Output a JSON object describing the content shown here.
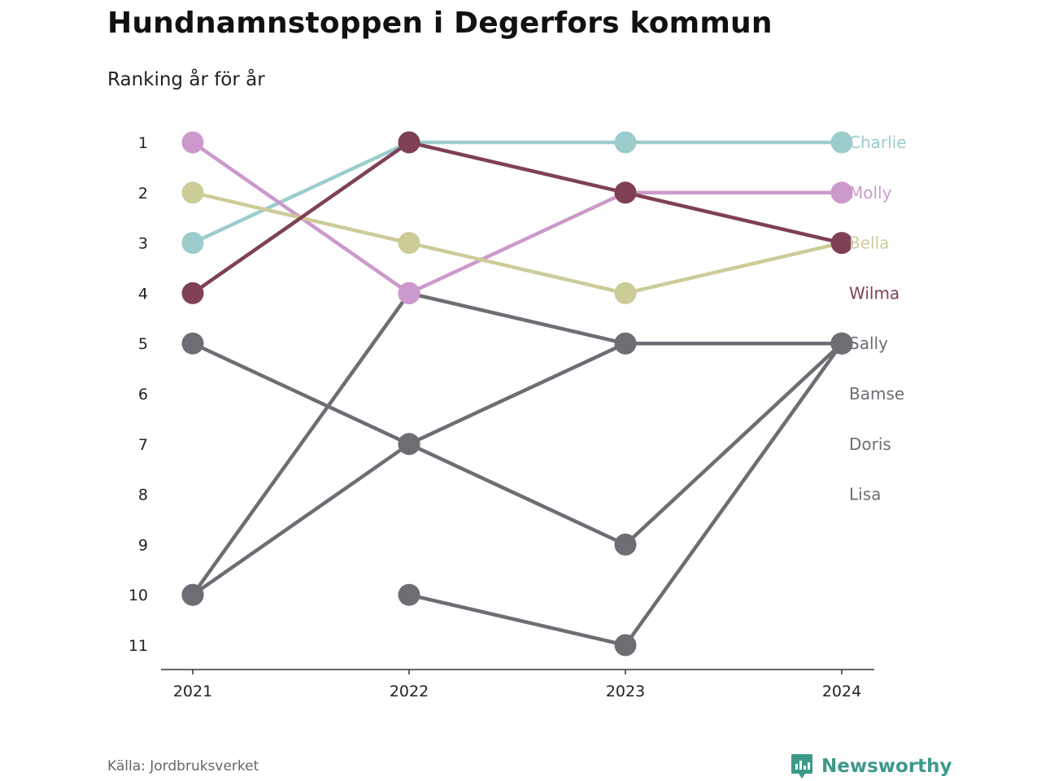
{
  "header": {
    "title": "Hundnamnstoppen i Degerfors kommun",
    "subtitle": "Ranking år för år"
  },
  "footer": {
    "source": "Källa: Jordbruksverket",
    "brand": "Newsworthy",
    "brand_icon": "bar-chart-speech-bubble-icon"
  },
  "chart_data": {
    "type": "line",
    "subtype": "bump",
    "x": [
      2021,
      2022,
      2023,
      2024
    ],
    "x_tick_labels": [
      "2021",
      "2022",
      "2023",
      "2024"
    ],
    "y_tick_labels": [
      "1",
      "2",
      "3",
      "4",
      "5",
      "6",
      "7",
      "8",
      "9",
      "10",
      "11"
    ],
    "ylim": [
      1,
      11
    ],
    "y_inverted": true,
    "grid": false,
    "legend": "direct labels at right end",
    "series": [
      {
        "name": "Charlie",
        "color": "#9ccccc",
        "ranks": [
          3,
          1,
          1,
          1
        ]
      },
      {
        "name": "Molly",
        "color": "#cc99cc",
        "ranks": [
          1,
          4,
          2,
          2
        ]
      },
      {
        "name": "Bella",
        "color": "#cccc99",
        "ranks": [
          2,
          3,
          4,
          3
        ]
      },
      {
        "name": "Wilma",
        "color": "#7f4055",
        "ranks": [
          4,
          1,
          2,
          3
        ]
      },
      {
        "name": "Sally",
        "color": "#6d6d74",
        "ranks": [
          5,
          7,
          9,
          5
        ]
      },
      {
        "name": "Bamse",
        "color": "#6d6d74",
        "ranks": [
          10,
          4,
          5,
          5
        ]
      },
      {
        "name": "Doris",
        "color": "#6d6d74",
        "ranks": [
          10,
          7,
          5,
          5
        ]
      },
      {
        "name": "Lisa",
        "color": "#6d6d74",
        "ranks": [
          null,
          10,
          11,
          5
        ]
      }
    ],
    "end_labels": [
      {
        "name": "Charlie",
        "rank": 1,
        "color": "#9ccccc"
      },
      {
        "name": "Molly",
        "rank": 2,
        "color": "#cc99cc"
      },
      {
        "name": "Bella",
        "rank": 3,
        "color": "#cccc99"
      },
      {
        "name": "Wilma",
        "rank": 4,
        "color": "#7f4055"
      },
      {
        "name": "Sally",
        "rank": 5,
        "color": "#6d6d74"
      },
      {
        "name": "Bamse",
        "rank": 6,
        "color": "#6d6d74"
      },
      {
        "name": "Doris",
        "rank": 7,
        "color": "#6d6d74"
      },
      {
        "name": "Lisa",
        "rank": 8,
        "color": "#6d6d74"
      }
    ],
    "colors": {
      "axis": "#333333",
      "tick_text": "#222222"
    }
  }
}
